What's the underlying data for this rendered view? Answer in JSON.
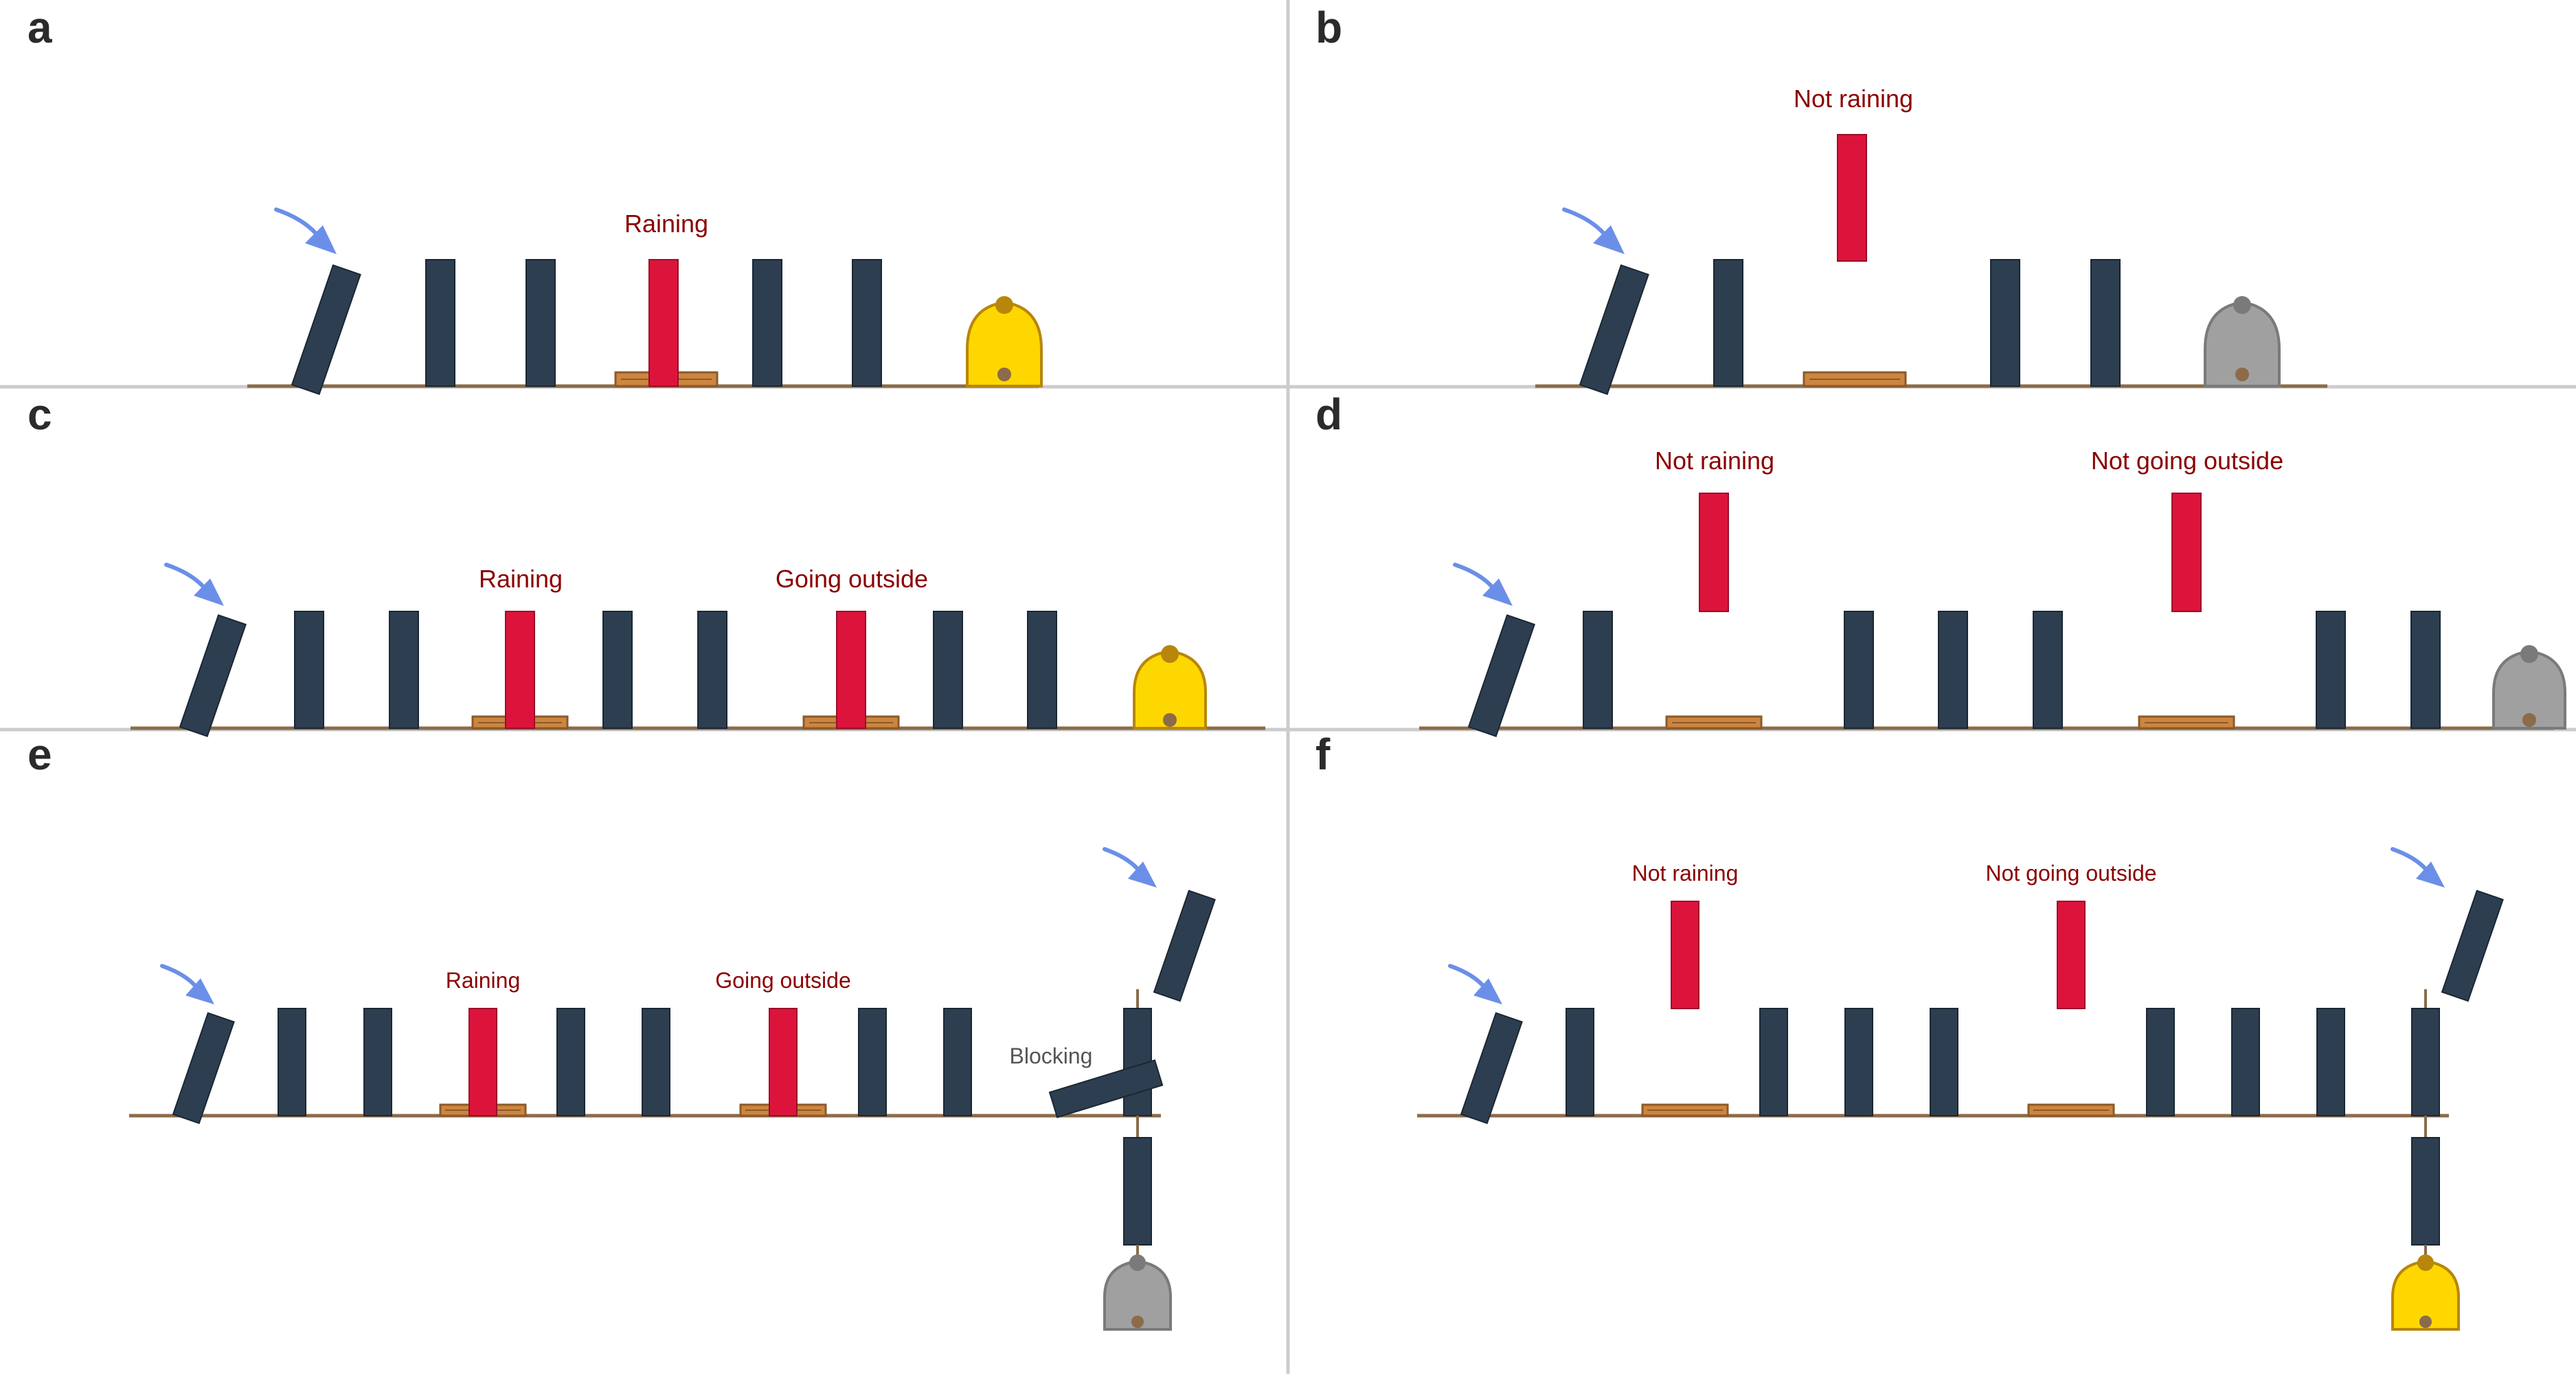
{
  "panels": [
    {
      "letter": "a",
      "conditions": [
        "Raining"
      ],
      "bell": "ringing"
    },
    {
      "letter": "b",
      "conditions": [
        "Not raining"
      ],
      "bell": "silent"
    },
    {
      "letter": "c",
      "conditions": [
        "Raining",
        "Going outside"
      ],
      "bell": "ringing"
    },
    {
      "letter": "d",
      "conditions": [
        "Not raining",
        "Not going outside"
      ],
      "bell": "silent"
    },
    {
      "letter": "e",
      "conditions": [
        "Raining",
        "Going outside"
      ],
      "blocker": "Blocking",
      "bell": "silent"
    },
    {
      "letter": "f",
      "conditions": [
        "Not raining",
        "Not going outside"
      ],
      "bell": "ringing"
    }
  ],
  "colors": {
    "domino": "#2c3e50",
    "condition_domino": "#dc143c",
    "pad": "#cd853f",
    "ground": "#8b6b4a",
    "push_arrow": "#6b8fe8",
    "bell_ringing": "#ffd700",
    "bell_silent": "#a0a0a0",
    "text_condition": "#8b0000"
  },
  "icons": [
    "push-arrow-icon",
    "bell-icon",
    "domino-icon"
  ]
}
